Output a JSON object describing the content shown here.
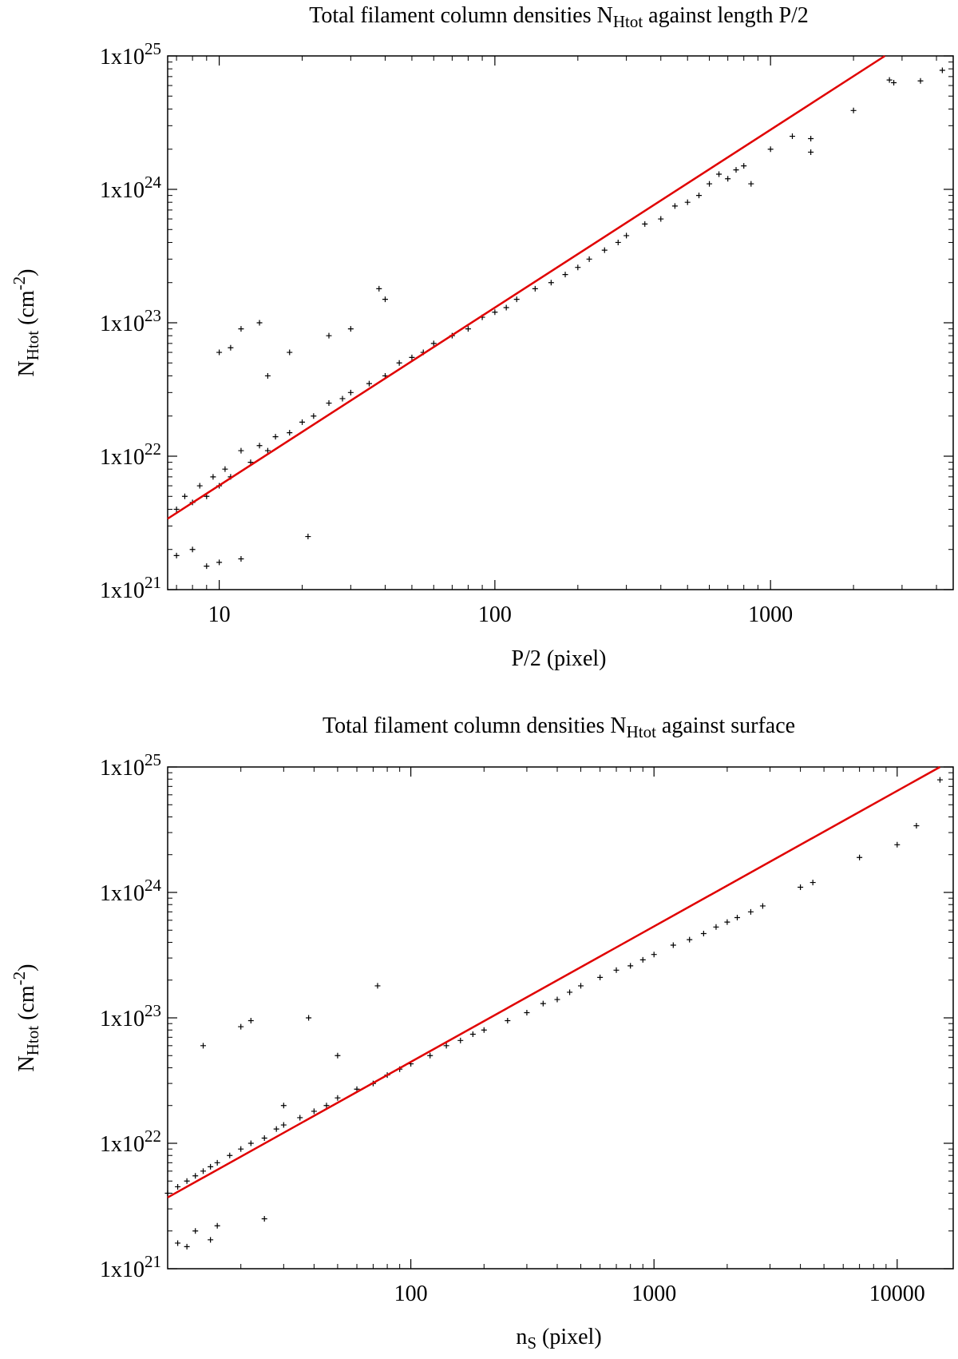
{
  "chart_data": [
    {
      "type": "scatter",
      "title": {
        "prefix": "Total filament column densities N",
        "sub": "Htot",
        "suffix": " against length P/2"
      },
      "xlabel": {
        "text": "P/2 (pixel)"
      },
      "ylabel": {
        "main": "N",
        "sub": "Htot",
        "unit_pre": "  (cm",
        "unit_sup": "-2",
        "unit_post": ")"
      },
      "xscale": "log",
      "yscale": "log",
      "xlim": [
        6.5,
        4600
      ],
      "ylim": [
        1e+21,
        1e+25
      ],
      "x_ticks": [
        {
          "value": 10,
          "label": "10"
        },
        {
          "value": 100,
          "label": "100"
        },
        {
          "value": 1000,
          "label": "1000"
        }
      ],
      "y_ticks": [
        {
          "value": 1e+21,
          "mantissa": "1x10",
          "exponent": "21"
        },
        {
          "value": 1e+22,
          "mantissa": "1x10",
          "exponent": "22"
        },
        {
          "value": 1e+23,
          "mantissa": "1x10",
          "exponent": "23"
        },
        {
          "value": 1e+24,
          "mantissa": "1x10",
          "exponent": "24"
        },
        {
          "value": 1e+25,
          "mantissa": "1x10",
          "exponent": "25"
        }
      ],
      "grid": false,
      "marker": "+",
      "marker_color": "#000000",
      "fit_line": {
        "color": "#e00000",
        "x": [
          6.5,
          2600
        ],
        "y": [
          3.4e+21,
          1e+25
        ]
      },
      "series": [
        {
          "x": [
            7,
            7.5,
            8,
            8.5,
            9,
            9.5,
            10,
            10.5,
            11,
            12,
            13,
            14,
            15,
            16,
            18,
            20,
            22,
            25,
            28,
            30,
            35,
            40,
            45,
            50,
            55,
            60,
            70,
            80,
            90,
            100,
            110,
            120,
            140,
            160,
            180,
            200,
            220,
            250,
            280,
            300,
            350,
            400,
            450,
            500,
            550,
            600,
            650,
            700,
            750,
            800,
            850,
            1000,
            1200,
            1400,
            1400,
            2000,
            2700,
            2800,
            3500,
            4200,
            10,
            11,
            14,
            38,
            40,
            7,
            8,
            9,
            10,
            12,
            21,
            12,
            15,
            18,
            25,
            30
          ],
          "y": [
            4e+21,
            5e+21,
            4.5e+21,
            6e+21,
            5e+21,
            7e+21,
            6e+21,
            8e+21,
            7e+21,
            1.1e+22,
            9e+21,
            1.2e+22,
            1.1e+22,
            1.4e+22,
            1.5e+22,
            1.8e+22,
            2e+22,
            2.5e+22,
            2.7e+22,
            3e+22,
            3.5e+22,
            4e+22,
            5e+22,
            5.5e+22,
            6e+22,
            7e+22,
            8e+22,
            9e+22,
            1.1e+23,
            1.2e+23,
            1.3e+23,
            1.5e+23,
            1.8e+23,
            2e+23,
            2.3e+23,
            2.6e+23,
            3e+23,
            3.5e+23,
            4e+23,
            4.5e+23,
            5.5e+23,
            6e+23,
            7.5e+23,
            8e+23,
            9e+23,
            1.1e+24,
            1.3e+24,
            1.2e+24,
            1.4e+24,
            1.5e+24,
            1.1e+24,
            2e+24,
            2.5e+24,
            2.4e+24,
            1.9e+24,
            3.9e+24,
            6.6e+24,
            6.3e+24,
            6.5e+24,
            7.8e+24,
            6e+22,
            6.5e+22,
            1e+23,
            1.8e+23,
            1.5e+23,
            1.8e+21,
            2e+21,
            1.5e+21,
            1.6e+21,
            1.7e+21,
            2.5e+21,
            9e+22,
            4e+22,
            6e+22,
            8e+22,
            9e+22
          ]
        }
      ]
    },
    {
      "type": "scatter",
      "title": {
        "prefix": "Total filament column densities N",
        "sub": "Htot",
        "suffix": " against surface"
      },
      "xlabel": {
        "main": "n",
        "sub": "S",
        "suffix": " (pixel)"
      },
      "ylabel": {
        "main": "N",
        "sub": "Htot",
        "unit_pre": "  (cm",
        "unit_sup": "-2",
        "unit_post": ")"
      },
      "xscale": "log",
      "yscale": "log",
      "xlim": [
        10,
        17000
      ],
      "ylim": [
        1e+21,
        1e+25
      ],
      "x_ticks": [
        {
          "value": 100,
          "label": "100"
        },
        {
          "value": 1000,
          "label": "1000"
        },
        {
          "value": 10000,
          "label": "10000"
        }
      ],
      "y_ticks": [
        {
          "value": 1e+21,
          "mantissa": "1x10",
          "exponent": "21"
        },
        {
          "value": 1e+22,
          "mantissa": "1x10",
          "exponent": "22"
        },
        {
          "value": 1e+23,
          "mantissa": "1x10",
          "exponent": "23"
        },
        {
          "value": 1e+24,
          "mantissa": "1x10",
          "exponent": "24"
        },
        {
          "value": 1e+25,
          "mantissa": "1x10",
          "exponent": "25"
        }
      ],
      "grid": false,
      "marker": "+",
      "marker_color": "#000000",
      "fit_line": {
        "color": "#e00000",
        "x": [
          10,
          15000
        ],
        "y": [
          3.7e+21,
          1e+25
        ]
      },
      "series": [
        {
          "x": [
            10,
            11,
            12,
            13,
            14,
            15,
            16,
            18,
            20,
            22,
            25,
            28,
            30,
            35,
            40,
            45,
            50,
            60,
            70,
            80,
            90,
            100,
            120,
            140,
            160,
            180,
            200,
            250,
            300,
            350,
            400,
            450,
            500,
            600,
            700,
            800,
            900,
            1000,
            1200,
            1400,
            1600,
            1800,
            2000,
            2200,
            2500,
            2800,
            4000,
            4500,
            7000,
            10000,
            12000,
            15000,
            14,
            20,
            22,
            38,
            73,
            11,
            12,
            13,
            15,
            16,
            25,
            30,
            50
          ],
          "y": [
            4e+21,
            4.5e+21,
            5e+21,
            5.5e+21,
            6e+21,
            6.5e+21,
            7e+21,
            8e+21,
            9e+21,
            1e+22,
            1.1e+22,
            1.3e+22,
            1.4e+22,
            1.6e+22,
            1.8e+22,
            2e+22,
            2.3e+22,
            2.7e+22,
            3e+22,
            3.5e+22,
            3.9e+22,
            4.3e+22,
            5e+22,
            6e+22,
            6.6e+22,
            7.4e+22,
            8e+22,
            9.5e+22,
            1.1e+23,
            1.3e+23,
            1.4e+23,
            1.6e+23,
            1.8e+23,
            2.1e+23,
            2.4e+23,
            2.6e+23,
            2.9e+23,
            3.2e+23,
            3.8e+23,
            4.2e+23,
            4.7e+23,
            5.3e+23,
            5.8e+23,
            6.3e+23,
            7e+23,
            7.8e+23,
            1.1e+24,
            1.2e+24,
            1.9e+24,
            2.4e+24,
            3.4e+24,
            7.9e+24,
            6e+22,
            8.5e+22,
            9.5e+22,
            1e+23,
            1.8e+23,
            1.6e+21,
            1.5e+21,
            2e+21,
            1.7e+21,
            2.2e+21,
            2.5e+21,
            2e+22,
            5e+22
          ]
        }
      ]
    }
  ]
}
